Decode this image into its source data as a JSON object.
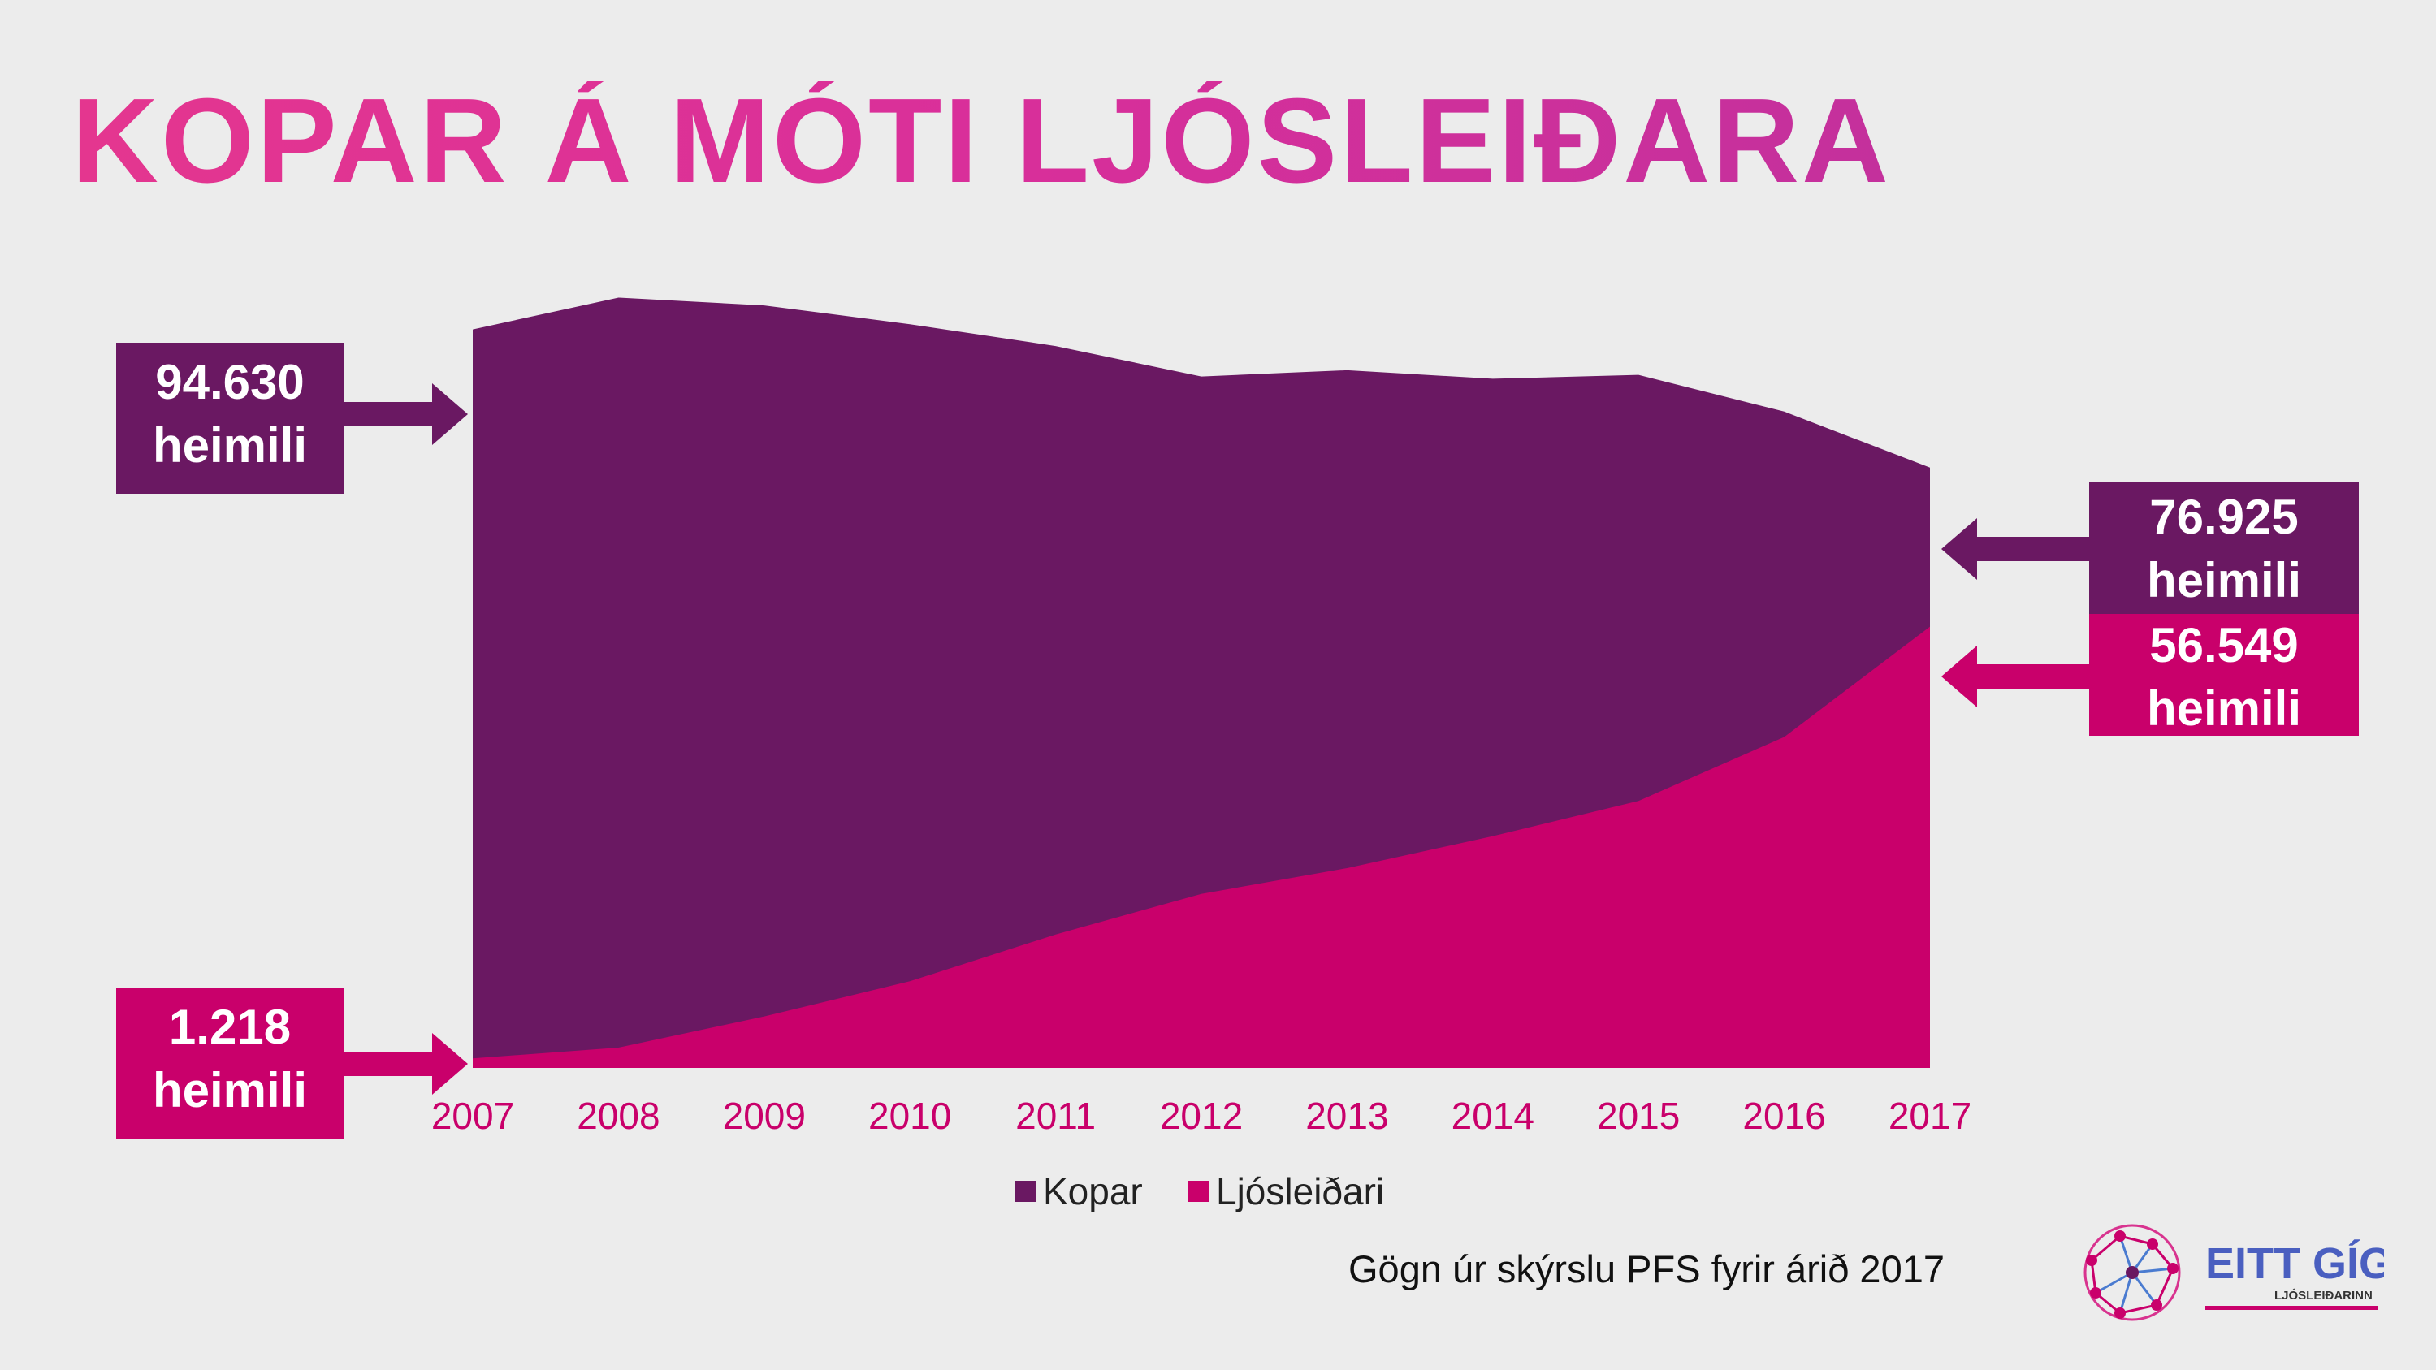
{
  "title": "KOPAR Á MÓTI LJÓSLEIÐARA",
  "source_note": "Gögn úr skýrslu PFS fyrir árið 2017",
  "logo": {
    "brand": "EITT GÍG",
    "tagline": "LJÓSLEIÐARINN"
  },
  "colors": {
    "kopar": "#6a1862",
    "ljosleidari": "#c9006b",
    "title": "#e0348e",
    "axis_text": "#c9006b"
  },
  "callouts": {
    "kopar_2007": {
      "value": "94.630",
      "unit": "heimili"
    },
    "ljos_2007": {
      "value": "1.218",
      "unit": "heimili"
    },
    "kopar_2017": {
      "value": "76.925",
      "unit": "heimili"
    },
    "ljos_2017": {
      "value": "56.549",
      "unit": "heimili"
    }
  },
  "chart_data": {
    "type": "area",
    "x": [
      "2007",
      "2008",
      "2009",
      "2010",
      "2011",
      "2012",
      "2013",
      "2014",
      "2015",
      "2016",
      "2017"
    ],
    "series": [
      {
        "name": "Kopar",
        "values": [
          94630,
          98700,
          97700,
          95300,
          92500,
          88600,
          89400,
          88300,
          88800,
          84100,
          76925
        ]
      },
      {
        "name": "Ljósleiðari",
        "values": [
          1218,
          2600,
          6600,
          11100,
          17100,
          22300,
          25600,
          29700,
          34200,
          42400,
          56549
        ]
      }
    ],
    "ylim": [
      0,
      100000
    ],
    "legend_position": "bottom",
    "grid": false
  }
}
